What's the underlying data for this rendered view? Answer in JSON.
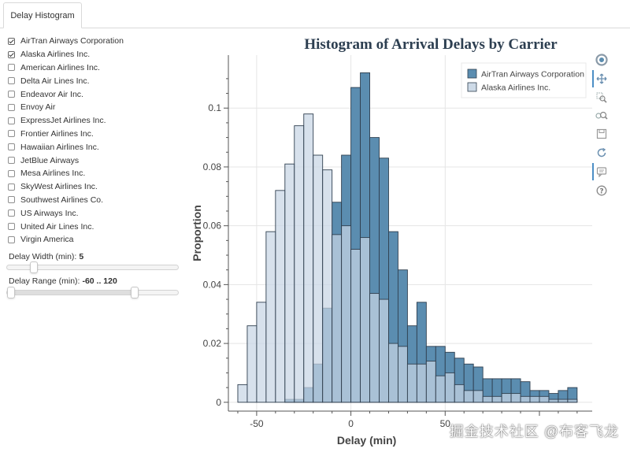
{
  "tabs": [
    {
      "label": "Delay Histogram",
      "active": true
    }
  ],
  "carriers": [
    {
      "label": "AirTran Airways Corporation",
      "checked": true
    },
    {
      "label": "Alaska Airlines Inc.",
      "checked": true
    },
    {
      "label": "American Airlines Inc.",
      "checked": false
    },
    {
      "label": "Delta Air Lines Inc.",
      "checked": false
    },
    {
      "label": "Endeavor Air Inc.",
      "checked": false
    },
    {
      "label": "Envoy Air",
      "checked": false
    },
    {
      "label": "ExpressJet Airlines Inc.",
      "checked": false
    },
    {
      "label": "Frontier Airlines Inc.",
      "checked": false
    },
    {
      "label": "Hawaiian Airlines Inc.",
      "checked": false
    },
    {
      "label": "JetBlue Airways",
      "checked": false
    },
    {
      "label": "Mesa Airlines Inc.",
      "checked": false
    },
    {
      "label": "SkyWest Airlines Inc.",
      "checked": false
    },
    {
      "label": "Southwest Airlines Co.",
      "checked": false
    },
    {
      "label": "US Airways Inc.",
      "checked": false
    },
    {
      "label": "United Air Lines Inc.",
      "checked": false
    },
    {
      "label": "Virgin America",
      "checked": false
    }
  ],
  "width_slider": {
    "label": "Delay Width (min):",
    "value_text": "5",
    "value": 5,
    "min": 1,
    "max": 30
  },
  "range_slider": {
    "label": "Delay Range (min):",
    "value_text": "-60 .. 120",
    "start": -60,
    "end": 120,
    "min": -60,
    "max": 180
  },
  "toolbar": {
    "tools": [
      "bokeh-logo-icon",
      "pan-icon",
      "box-zoom-icon",
      "wheel-zoom-icon",
      "save-icon",
      "reset-icon",
      "hover-icon",
      "help-icon"
    ]
  },
  "watermark": "掘金技术社区 @布客飞龙",
  "colors": {
    "airtran": "#5b8db0",
    "alaska": "#c8d6e4",
    "title": "#2c3e50",
    "grid": "#e5e5e5"
  },
  "chart_data": {
    "type": "bar",
    "title": "Histogram of Arrival Delays by Carrier",
    "xlabel": "Delay (min)",
    "ylabel": "Proportion",
    "xlim": [
      -65,
      128
    ],
    "ylim": [
      -0.003,
      0.118
    ],
    "xticks": [
      -50,
      0,
      50
    ],
    "xtick_labels": [
      "-50",
      "0",
      "50"
    ],
    "yticks": [
      0,
      0.02,
      0.04,
      0.06,
      0.08,
      0.1
    ],
    "ytick_labels": [
      "0",
      "0.02",
      "0.04",
      "0.06",
      "0.08",
      "0.1"
    ],
    "grid": true,
    "legend_position": "top-right",
    "bin_width": 5,
    "bin_starts": [
      -60,
      -55,
      -50,
      -45,
      -40,
      -35,
      -30,
      -25,
      -20,
      -15,
      -10,
      -5,
      0,
      5,
      10,
      15,
      20,
      25,
      30,
      35,
      40,
      45,
      50,
      55,
      60,
      65,
      70,
      75,
      80,
      85,
      90,
      95,
      100,
      105,
      110,
      115
    ],
    "series": [
      {
        "name": "AirTran Airways Corporation",
        "values": [
          0,
          0,
          0,
          0,
          0,
          0.001,
          0.001,
          0.005,
          0.013,
          0.032,
          0.068,
          0.084,
          0.107,
          0.112,
          0.09,
          0.083,
          0.058,
          0.045,
          0.026,
          0.034,
          0.019,
          0.019,
          0.017,
          0.015,
          0.013,
          0.012,
          0.008,
          0.008,
          0.008,
          0.008,
          0.007,
          0.004,
          0.004,
          0.003,
          0.004,
          0.005
        ]
      },
      {
        "name": "Alaska Airlines Inc.",
        "values": [
          0.006,
          0.026,
          0.034,
          0.058,
          0.072,
          0.081,
          0.094,
          0.098,
          0.084,
          0.079,
          0.057,
          0.06,
          0.052,
          0.056,
          0.037,
          0.035,
          0.02,
          0.019,
          0.013,
          0.013,
          0.014,
          0.009,
          0.01,
          0.006,
          0.004,
          0.004,
          0.002,
          0.002,
          0.003,
          0.003,
          0.002,
          0.002,
          0.002,
          0.001,
          0.001,
          0.001
        ]
      }
    ]
  }
}
